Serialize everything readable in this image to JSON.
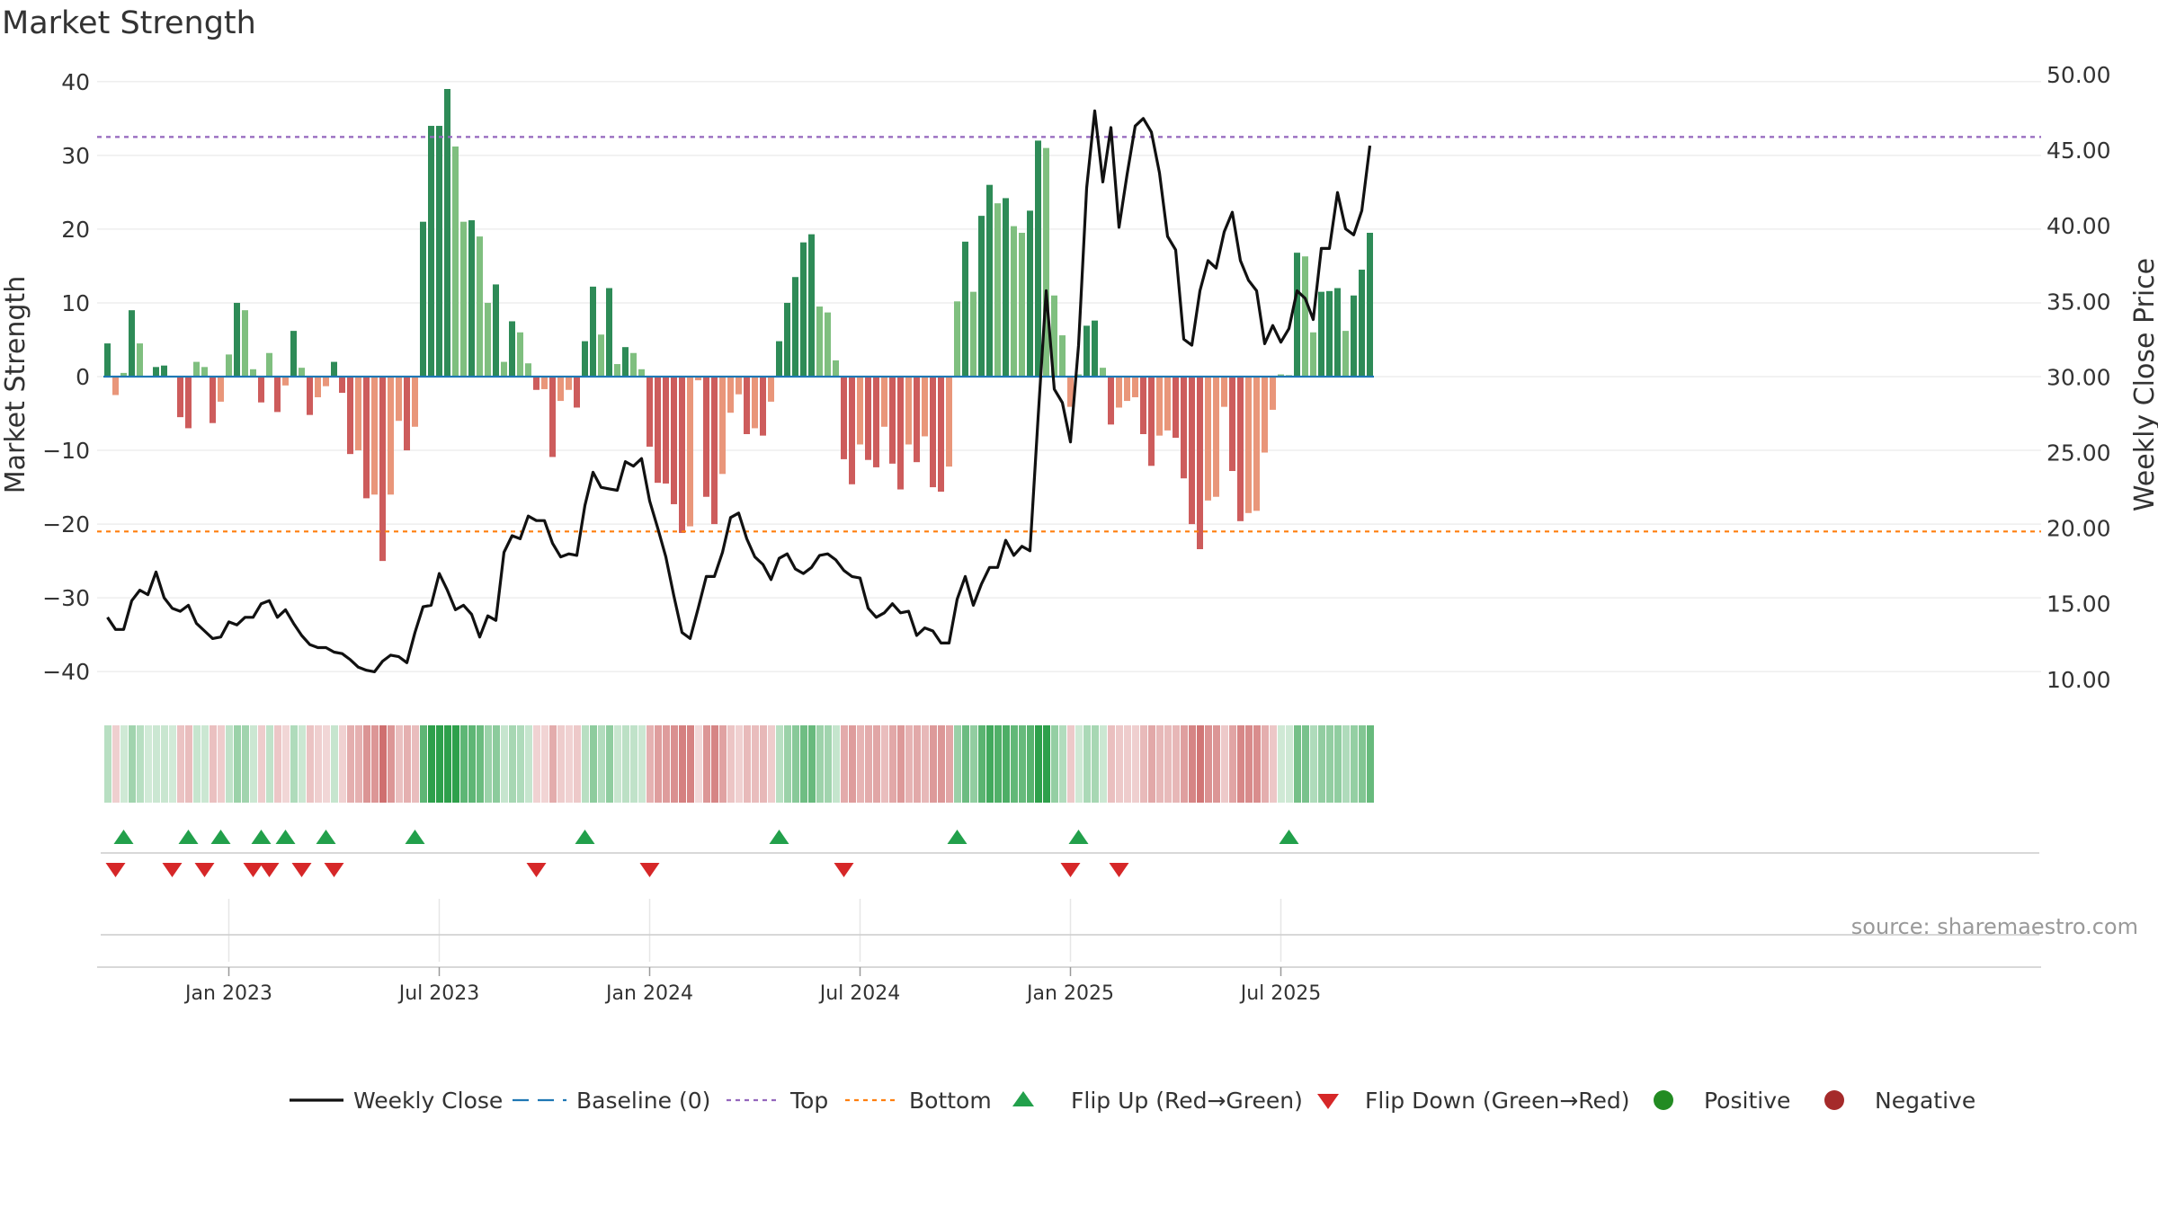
{
  "title": "Market Strength",
  "source": "source: sharemaestro.com",
  "colors": {
    "pos_strong": "#2e8b57",
    "pos_weak": "#7fbf7f",
    "neg_strong": "#cd5c5c",
    "neg_weak": "#e9967a",
    "price": "#111111",
    "baseline": "#1f77b4",
    "top": "#9467bd",
    "bottom": "#ff7f0e",
    "flip_up": "#22a04b",
    "flip_down": "#d62728",
    "positive": "#228b22",
    "negative": "#a52a2a"
  },
  "chart_data": {
    "type": "bar",
    "title": "Market Strength",
    "ylabel_left": "Market Strength",
    "ylabel_right": "Weekly Close Price",
    "left_ylim": [
      -42,
      42
    ],
    "right_ylim": [
      9,
      51
    ],
    "left_ticks": [
      "40",
      "30",
      "20",
      "10",
      "0",
      "−10",
      "−20",
      "−30",
      "−40"
    ],
    "left_tick_values": [
      40,
      30,
      20,
      10,
      0,
      -10,
      -20,
      -30,
      -40
    ],
    "right_ticks": [
      "50.00",
      "45.00",
      "40.00",
      "35.00",
      "30.00",
      "25.00",
      "20.00",
      "15.00",
      "10.00"
    ],
    "right_tick_values": [
      50,
      45,
      40,
      35,
      30,
      25,
      20,
      15,
      10
    ],
    "x_ticks": [
      "Jan 2023",
      "Jul 2023",
      "Jan 2024",
      "Jul 2024",
      "Jan 2025",
      "Jul 2025"
    ],
    "x_tick_weeks": [
      15,
      41,
      67,
      93,
      119,
      145
    ],
    "top_level": 32.5,
    "bottom_level": -21,
    "strength": [
      4.5,
      -2.5,
      0.5,
      9,
      4.5,
      0,
      1.3,
      1.5,
      0,
      -5.5,
      -7,
      2,
      1.3,
      -6.3,
      -3.4,
      3,
      10,
      9,
      1,
      -3.5,
      3.2,
      -4.8,
      -1.2,
      6.2,
      1.2,
      -5.2,
      -2.8,
      -1.3,
      2,
      -2.2,
      -10.5,
      -10,
      -16.5,
      -16,
      -25,
      -16,
      -6,
      -10,
      -6.8,
      21,
      34,
      34,
      39,
      31.2,
      21,
      21.2,
      19,
      10,
      12.5,
      2,
      7.5,
      6,
      1.8,
      -1.8,
      -1.7,
      -10.9,
      -3.3,
      -1.8,
      -4.2,
      4.8,
      12.2,
      5.7,
      12,
      1.7,
      4,
      3.2,
      1,
      -9.5,
      -14.4,
      -14.5,
      -17.3,
      -21.2,
      -20.3,
      -0.5,
      -16.3,
      -20,
      -13.2,
      -4.9,
      -2.4,
      -7.8,
      -7,
      -8,
      -3.4,
      4.8,
      10,
      13.5,
      18.2,
      19.3,
      9.5,
      8.7,
      2.2,
      -11.2,
      -14.6,
      -9.2,
      -11.3,
      -12.3,
      -6.8,
      -11.8,
      -15.3,
      -9.2,
      -11.6,
      -8.1,
      -15,
      -15.6,
      -12.2,
      10.2,
      18.3,
      11.5,
      21.8,
      26,
      23.5,
      24.2,
      20.4,
      19.5,
      22.5,
      32,
      31,
      11,
      5.6,
      -4.1,
      0.3,
      6.9,
      7.6,
      1.2,
      -6.5,
      -4.2,
      -3.3,
      -2.8,
      -7.8,
      -12.1,
      -8,
      -7.3,
      -8.3,
      -13.8,
      -20,
      -23.4,
      -16.8,
      -16.3,
      -4.1,
      -12.8,
      -19.6,
      -18.5,
      -18.2,
      -10.3,
      -4.5,
      0.3,
      0.2,
      16.8,
      16.3,
      6,
      11.5,
      11.6,
      12,
      6.2,
      11,
      14.5,
      19.5
    ],
    "price": [
      14.1,
      13.3,
      13.3,
      15.2,
      15.9,
      15.6,
      17.1,
      15.4,
      14.7,
      14.5,
      14.9,
      13.7,
      13.2,
      12.7,
      12.8,
      13.8,
      13.6,
      14.1,
      14.1,
      15,
      15.2,
      14.1,
      14.6,
      13.7,
      12.9,
      12.3,
      12.1,
      12.1,
      11.8,
      11.7,
      11.3,
      10.8,
      10.6,
      10.5,
      11.2,
      11.6,
      11.5,
      11.1,
      13.1,
      14.8,
      14.9,
      17,
      15.9,
      14.6,
      14.9,
      14.3,
      12.8,
      14.2,
      13.9,
      18.4,
      19.5,
      19.3,
      20.8,
      20.5,
      20.5,
      19,
      18.1,
      18.3,
      18.2,
      21.5,
      23.7,
      22.7,
      22.6,
      22.5,
      24.4,
      24.1,
      24.6,
      21.8,
      20,
      18.1,
      15.5,
      13.1,
      12.7,
      14.7,
      16.8,
      16.8,
      18.4,
      20.7,
      21,
      19.3,
      18.1,
      17.6,
      16.6,
      18,
      18.3,
      17.3,
      17,
      17.4,
      18.2,
      18.3,
      17.9,
      17.2,
      16.8,
      16.7,
      14.7,
      14.1,
      14.4,
      15,
      14.4,
      14.5,
      12.9,
      13.4,
      13.2,
      12.4,
      12.4,
      15.3,
      16.8,
      14.9,
      16.3,
      17.4,
      17.4,
      19.2,
      18.2,
      18.8,
      18.5,
      27.3,
      35.7,
      29.2,
      28.3,
      25.7,
      32.1,
      42.5,
      47.6,
      42.9,
      46.5,
      39.9,
      43.4,
      46.6,
      47.1,
      46.2,
      43.5,
      39.3,
      38.4,
      32.5,
      32.1,
      35.7,
      37.7,
      37.2,
      39.6,
      40.9,
      37.7,
      36.4,
      35.7,
      32.2,
      33.4,
      32.3,
      33.2,
      35.7,
      35.2,
      33.8,
      38.5,
      38.5,
      42.2,
      39.8,
      39.4,
      41,
      45.3
    ],
    "flip_up_weeks": [
      2,
      10,
      14,
      19,
      22,
      27,
      38,
      59,
      83,
      105,
      120,
      146
    ],
    "flip_down_weeks": [
      1,
      8,
      12,
      18,
      20,
      24,
      28,
      53,
      67,
      91,
      119,
      125
    ],
    "legend": [
      "Weekly Close",
      "Baseline (0)",
      "Top",
      "Bottom",
      "Flip Up (Red→Green)",
      "Flip Down (Green→Red)",
      "Positive",
      "Negative"
    ]
  }
}
